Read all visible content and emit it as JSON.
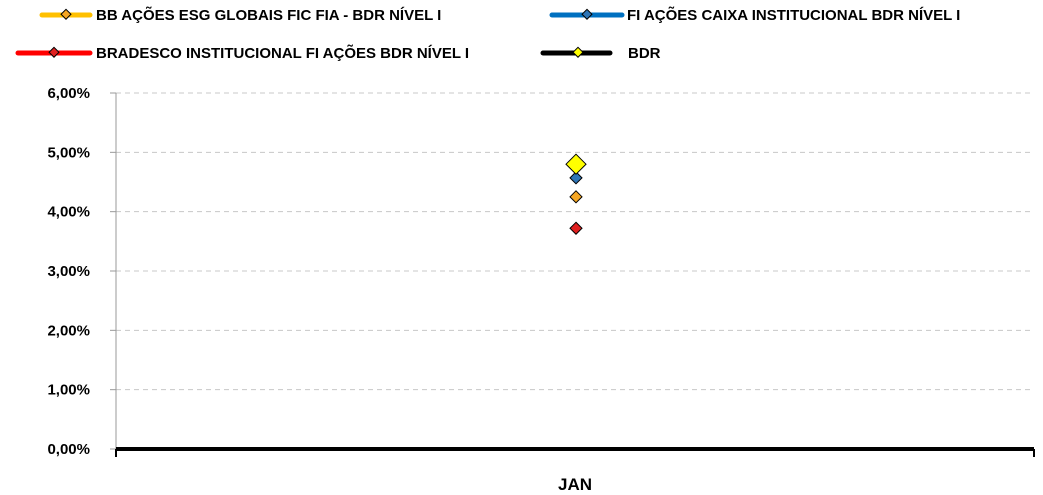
{
  "chart_data": {
    "type": "line",
    "categories": [
      "JAN"
    ],
    "series": [
      {
        "name": "BB AÇÕES ESG GLOBAIS FIC FIA - BDR NÍVEL I",
        "values": [
          4.25
        ],
        "color": "#FFC000",
        "marker_color": "#F5A623"
      },
      {
        "name": "FI AÇÕES CAIXA INSTITUCIONAL BDR NÍVEL I",
        "values": [
          4.57
        ],
        "color": "#0070C0",
        "marker_color": "#2E75B6"
      },
      {
        "name": "BRADESCO INSTITUCIONAL FI AÇÕES BDR NÍVEL I",
        "values": [
          3.72
        ],
        "color": "#FF0000",
        "marker_color": "#E02020"
      },
      {
        "name": "BDR",
        "values": [
          4.8
        ],
        "color": "#000000",
        "marker_color": "#FFFF00"
      }
    ],
    "y_ticks": [
      "0,00%",
      "1,00%",
      "2,00%",
      "3,00%",
      "4,00%",
      "5,00%",
      "6,00%"
    ],
    "ylim": [
      0,
      6
    ],
    "grid": true,
    "legend_position": "top"
  }
}
